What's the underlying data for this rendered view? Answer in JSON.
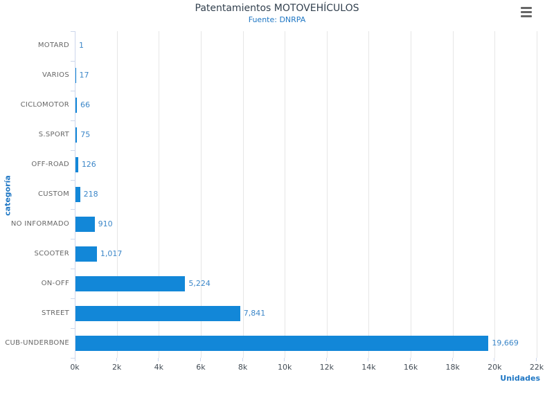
{
  "colors": {
    "bar": "#1287d8",
    "title_text": "#32404e",
    "blue_text": "#1f77c4",
    "value_label": "#3b86c8",
    "category_label": "#666666",
    "tick_label": "#434c55",
    "axis_line": "#ccd6eb",
    "gridline": "#e6e6e6",
    "menu_icon": "#666666"
  },
  "icons": {
    "export_menu": "hamburger-menu-icon"
  },
  "chart_data": {
    "type": "bar",
    "orientation": "horizontal",
    "title": "Patentamientos MOTOVEHÍCULOS",
    "subtitle": "Fuente: DNRPA",
    "xlabel": "Unidades",
    "ylabel": "categoría",
    "categories": [
      "MOTARD",
      "VARIOS",
      "CICLOMOTOR",
      "S.SPORT",
      "OFF-ROAD",
      "CUSTOM",
      "NO INFORMADO",
      "SCOOTER",
      "ON-OFF",
      "STREET",
      "CUB-UNDERBONE"
    ],
    "values": [
      1,
      17,
      66,
      75,
      126,
      218,
      910,
      1017,
      5224,
      7841,
      19669
    ],
    "value_labels": [
      "1",
      "17",
      "66",
      "75",
      "126",
      "218",
      "910",
      "1,017",
      "5,224",
      "7,841",
      "19,669"
    ],
    "xlim": [
      0,
      22000
    ],
    "x_ticks": [
      "0k",
      "2k",
      "4k",
      "6k",
      "8k",
      "10k",
      "12k",
      "14k",
      "16k",
      "18k",
      "20k",
      "22k"
    ],
    "x_tick_values": [
      0,
      2000,
      4000,
      6000,
      8000,
      10000,
      12000,
      14000,
      16000,
      18000,
      20000,
      22000
    ],
    "grid": true,
    "legend": "none"
  }
}
